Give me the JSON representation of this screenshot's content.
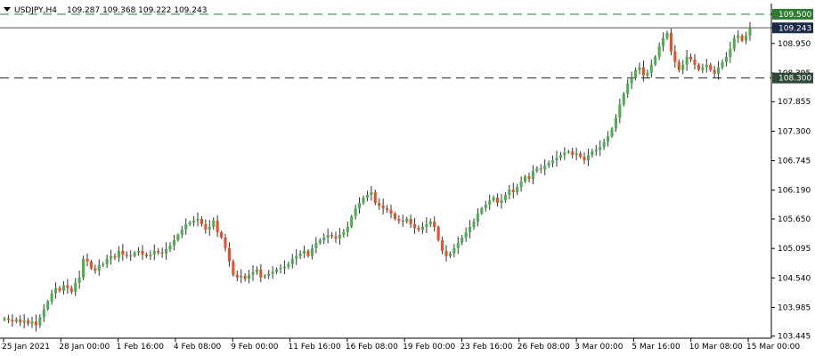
{
  "header": {
    "symbol": "USDJPY,H4",
    "ohlc": "109.287 109.368 109.222 109.243"
  },
  "levels": {
    "resistance": {
      "value": 109.5,
      "label": "109.500",
      "color": "#2e7d32"
    },
    "current": {
      "value": 109.243,
      "label": "109.243",
      "color": "#1a2a44"
    },
    "support": {
      "value": 108.3,
      "label": "108.300",
      "color": "#2e4a36"
    }
  },
  "colors": {
    "bull": "#4caf50",
    "bear": "#e8502a",
    "wick": "#333333",
    "axis": "#000000"
  },
  "chart_data": {
    "type": "candlestick",
    "y_ticks": [
      "109.500",
      "109.243",
      "108.950",
      "108.395",
      "107.855",
      "107.300",
      "106.745",
      "106.190",
      "105.650",
      "105.095",
      "104.540",
      "103.985",
      "103.445"
    ],
    "x_ticks": [
      "25 Jan 2021",
      "28 Jan 00:00",
      "1 Feb 16:00",
      "4 Feb 08:00",
      "9 Feb 00:00",
      "11 Feb 16:00",
      "16 Feb 08:00",
      "19 Feb 00:00",
      "23 Feb 16:00",
      "26 Feb 08:00",
      "3 Mar 00:00",
      "5 Mar 16:00",
      "10 Mar 08:00",
      "15 Mar 00:00"
    ],
    "ylim": [
      103.44,
      109.7
    ],
    "close": [
      103.78,
      103.75,
      103.72,
      103.76,
      103.7,
      103.74,
      103.68,
      103.72,
      103.65,
      103.8,
      103.95,
      104.1,
      104.25,
      104.35,
      104.3,
      104.4,
      104.35,
      104.28,
      104.45,
      104.55,
      104.9,
      104.85,
      104.72,
      104.68,
      104.78,
      104.8,
      104.9,
      104.95,
      104.92,
      105.05,
      104.98,
      104.96,
      104.95,
      105.02,
      105.05,
      104.98,
      104.95,
      104.98,
      105.05,
      105.02,
      105.0,
      105.08,
      105.15,
      105.25,
      105.35,
      105.45,
      105.55,
      105.58,
      105.62,
      105.65,
      105.55,
      105.45,
      105.5,
      105.62,
      105.4,
      105.3,
      105.1,
      104.85,
      104.6,
      104.55,
      104.58,
      104.52,
      104.6,
      104.65,
      104.7,
      104.55,
      104.58,
      104.62,
      104.65,
      104.7,
      104.72,
      104.75,
      104.8,
      104.9,
      104.95,
      105.0,
      105.05,
      104.95,
      105.1,
      105.2,
      105.25,
      105.3,
      105.35,
      105.32,
      105.28,
      105.35,
      105.4,
      105.5,
      105.7,
      105.85,
      105.95,
      106.05,
      106.1,
      106.15,
      105.95,
      105.9,
      105.85,
      105.82,
      105.75,
      105.65,
      105.62,
      105.6,
      105.65,
      105.55,
      105.48,
      105.45,
      105.5,
      105.55,
      105.6,
      105.5,
      105.25,
      105.05,
      104.95,
      105.0,
      105.1,
      105.2,
      105.3,
      105.4,
      105.5,
      105.6,
      105.75,
      105.85,
      105.92,
      106.0,
      106.05,
      105.95,
      106.0,
      106.1,
      106.2,
      106.15,
      106.25,
      106.35,
      106.45,
      106.4,
      106.55,
      106.6,
      106.58,
      106.65,
      106.7,
      106.75,
      106.8,
      106.85,
      106.9,
      106.92,
      106.85,
      106.88,
      106.82,
      106.75,
      106.85,
      106.92,
      106.95,
      107.0,
      107.1,
      107.2,
      107.35,
      107.55,
      107.8,
      108.0,
      108.2,
      108.3,
      108.45,
      108.5,
      108.35,
      108.4,
      108.55,
      108.7,
      108.9,
      109.05,
      109.15,
      108.8,
      108.6,
      108.45,
      108.55,
      108.7,
      108.65,
      108.55,
      108.45,
      108.5,
      108.55,
      108.45,
      108.38,
      108.5,
      108.6,
      108.7,
      108.85,
      109.05,
      109.1,
      109.0,
      109.1,
      109.243
    ],
    "series": [
      {
        "name": "USDJPY",
        "values": []
      }
    ]
  }
}
